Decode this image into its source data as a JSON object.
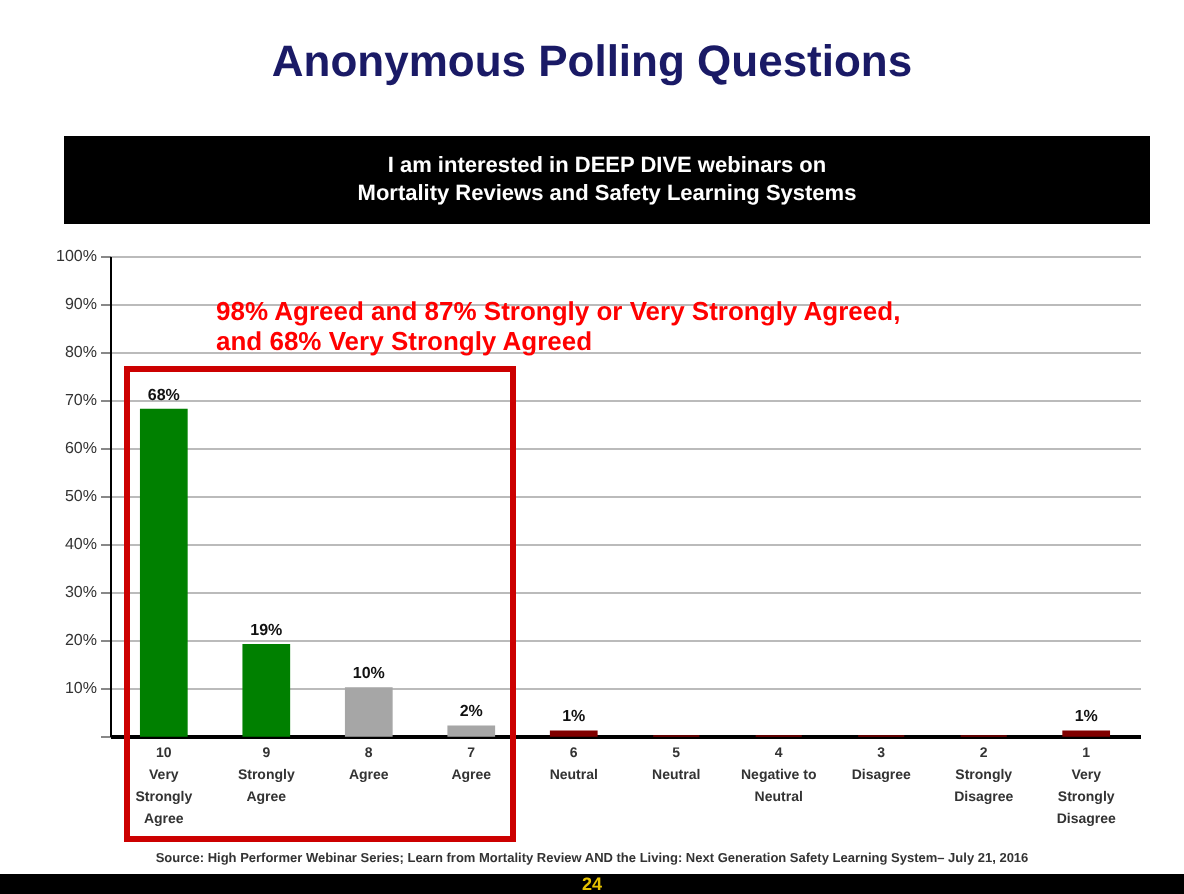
{
  "chart_data": {
    "type": "bar",
    "title": "Anonymous Polling Questions",
    "subtitle": "I am interested in DEEP DIVE webinars on\nMortality Reviews and Safety Learning Systems",
    "categories": [
      "10\nVery\nStrongly\nAgree",
      "9\nStrongly\nAgree",
      "8\nAgree",
      "7\nAgree",
      "6\nNeutral",
      "5\nNeutral",
      "4\nNegative to\nNeutral",
      "3\nDisagree",
      "2\nStrongly\nDisagree",
      "1\nVery\nStrongly\nDisagree"
    ],
    "values": [
      68,
      19,
      10,
      2,
      1,
      0,
      0,
      0,
      0,
      1
    ],
    "colors": [
      "#008000",
      "#008000",
      "#a6a6a6",
      "#a6a6a6",
      "#800000",
      "#800000",
      "#800000",
      "#800000",
      "#800000",
      "#800000"
    ],
    "value_labels": [
      "68%",
      "19%",
      "10%",
      "2%",
      "1%",
      null,
      null,
      null,
      null,
      "1%"
    ],
    "ylim": [
      0,
      100
    ],
    "yticks": [
      {
        "value": 0,
        "label": null
      },
      {
        "value": 10,
        "label": "10%"
      },
      {
        "value": 20,
        "label": "20%"
      },
      {
        "value": 30,
        "label": "30%"
      },
      {
        "value": 40,
        "label": "40%"
      },
      {
        "value": 50,
        "label": "50%"
      },
      {
        "value": 60,
        "label": "60%"
      },
      {
        "value": 70,
        "label": "70%"
      },
      {
        "value": 80,
        "label": "80%"
      },
      {
        "value": 90,
        "label": "90%"
      },
      {
        "value": 100,
        "label": "100%"
      }
    ],
    "grid": "y",
    "annotations": [
      "98% Agreed and 87% Strongly or Very Strongly Agreed,\nand 68% Very Strongly Agreed",
      "Source: High Performer Webinar Series; Learn from Mortality Review AND the Living: Next Generation Safety Learning System– July 21, 2016",
      "24"
    ]
  }
}
